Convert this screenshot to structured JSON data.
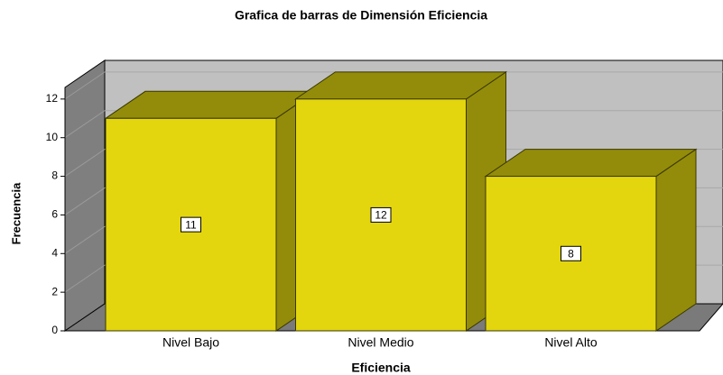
{
  "chart_data": {
    "type": "bar",
    "title": "Grafica de barras de Dimensión Eficiencia",
    "xlabel": "Eficiencia",
    "ylabel": "Frecuencia",
    "categories": [
      "Nivel Bajo",
      "Nivel Medio",
      "Nivel Alto"
    ],
    "values": [
      11,
      12,
      8
    ],
    "color": "#e3d60e",
    "ylim": [
      0,
      12.6
    ],
    "yticks": [
      0,
      2,
      4,
      6,
      8,
      10,
      12
    ],
    "grid": true
  }
}
